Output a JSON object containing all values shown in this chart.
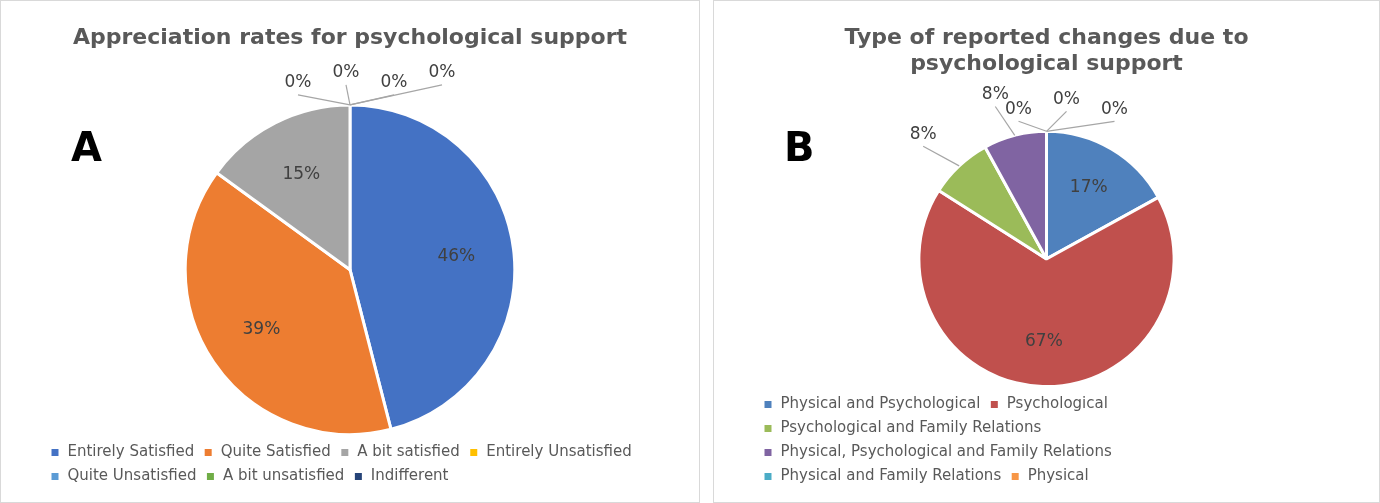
{
  "chart_data": [
    {
      "type": "pie",
      "title": "Appreciation rates for psychological support",
      "annotations": [
        "A"
      ],
      "legend": "bottom",
      "categories": [
        "Entirely Satisfied",
        "Quite Satisfied",
        "A bit satisfied",
        "Entirely Unsatisfied",
        "Quite Unsatisfied",
        "A bit unsatisfied",
        "Indifferent"
      ],
      "values": [
        46,
        39,
        15,
        0,
        0,
        0,
        0
      ],
      "value_labels": [
        "46%",
        "39%",
        "15%",
        "0%",
        "0%",
        "0%",
        "0%"
      ],
      "colors": [
        "#4472c4",
        "#ed7d31",
        "#a5a5a5",
        "#ffc000",
        "#5b9bd5",
        "#70ad47",
        "#264478"
      ]
    },
    {
      "type": "pie",
      "title": "Type of reported changes due to psychological support",
      "annotations": [
        "B"
      ],
      "legend": "bottom",
      "categories": [
        "Physical and Psychological",
        "Psychological",
        "Psychological and Family Relations",
        "Physical, Psychological and Family Relations",
        "Physical and Family Relations",
        "Physical",
        null
      ],
      "values": [
        17,
        67,
        8,
        8,
        0,
        0,
        0
      ],
      "value_labels": [
        "17%",
        "67%",
        "8%",
        "8%",
        "0%",
        "0%",
        "0%"
      ],
      "colors": [
        "#4f81bd",
        "#c0504d",
        "#9bbb59",
        "#8064a2",
        "#4bacc6",
        "#f79646",
        "#2c4d75"
      ]
    }
  ]
}
